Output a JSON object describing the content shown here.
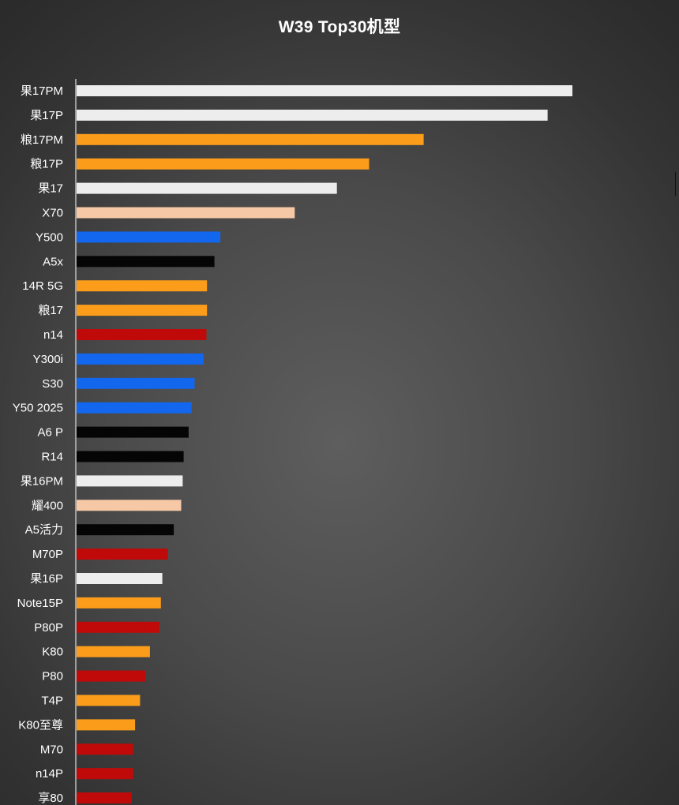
{
  "chart_data": {
    "type": "bar",
    "orientation": "horizontal",
    "title": "W39 Top30机型",
    "xlabel": "",
    "ylabel": "",
    "grid": false,
    "legend": "none",
    "xlim": [
      0,
      100
    ],
    "categories": [
      "果17PM",
      "果17P",
      "粮17PM",
      "粮17P",
      "果17",
      "X70",
      "Y500",
      "A5x",
      "14R 5G",
      "粮17",
      "n14",
      "Y300i",
      "S30",
      "Y50 2025",
      "A6 P",
      "R14",
      "果16PM",
      "耀400",
      "A5活力",
      "M70P",
      "果16P",
      "Note15P",
      "P80P",
      "K80",
      "P80",
      "T4P",
      "K80至尊",
      "M70",
      "n14P",
      "享80"
    ],
    "values": [
      100,
      95,
      70,
      59,
      52.5,
      44,
      29,
      27.8,
      26.3,
      26.3,
      26.2,
      25.6,
      23.8,
      23.2,
      22.6,
      21.6,
      21.4,
      21.1,
      19.6,
      18.4,
      17.3,
      17,
      16.7,
      14.8,
      13.9,
      12.8,
      11.8,
      11.4,
      11.4,
      11.1
    ],
    "colors": [
      "#ededed",
      "#ededed",
      "#fb9d1a",
      "#fb9d1a",
      "#ededed",
      "#f7c8a6",
      "#1267ee",
      "#050505",
      "#fb9d1a",
      "#fb9d1a",
      "#c00a0a",
      "#1267ee",
      "#1267ee",
      "#1267ee",
      "#050505",
      "#050505",
      "#ededed",
      "#f7c8a6",
      "#050505",
      "#c00a0a",
      "#ededed",
      "#fb9d1a",
      "#c00a0a",
      "#fb9d1a",
      "#c00a0a",
      "#fb9d1a",
      "#fb9d1a",
      "#c00a0a",
      "#c00a0a",
      "#c00a0a"
    ]
  }
}
